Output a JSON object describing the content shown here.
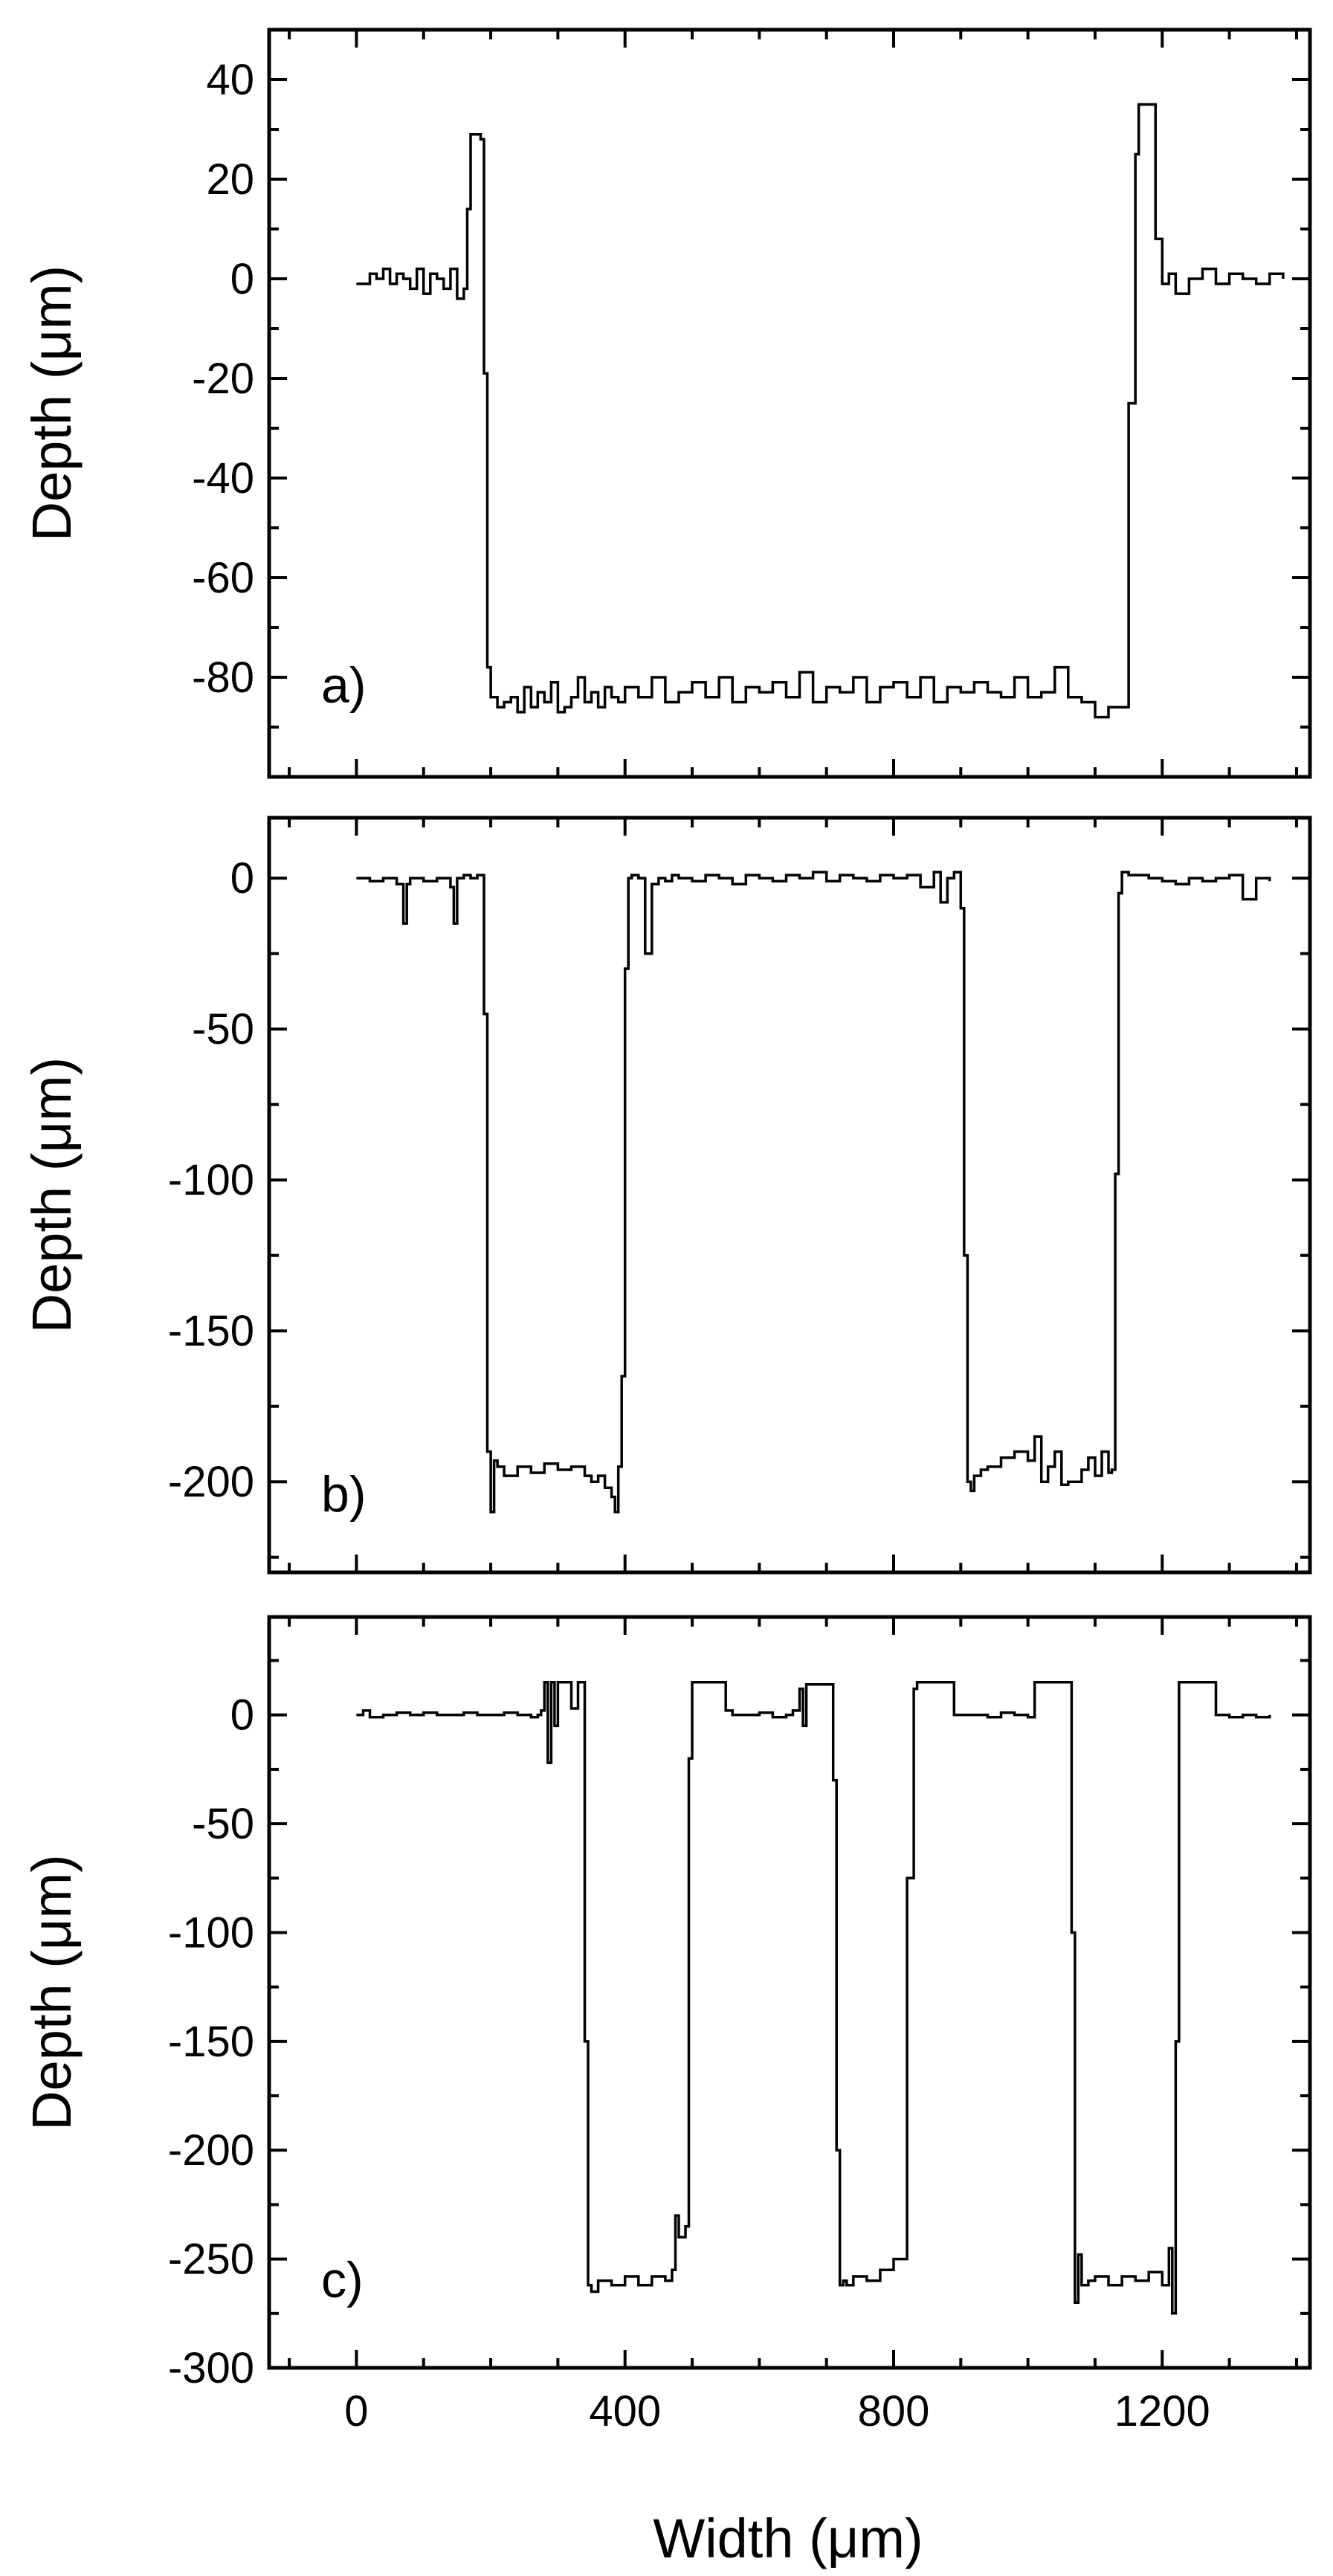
{
  "chart_data": [
    {
      "type": "line",
      "panel_label": "a)",
      "ylabel": "Depth (μm)",
      "xlim": [
        -130,
        1420
      ],
      "ylim": [
        -100,
        50
      ],
      "x_ticks": [
        0,
        400,
        800,
        1200
      ],
      "x_minor_step": 100,
      "y_ticks": [
        40,
        20,
        0,
        -20,
        -40,
        -60,
        -80
      ],
      "y_minor_step": 10,
      "series": [
        {
          "x": [
            0,
            10,
            20,
            30,
            40,
            50,
            60,
            70,
            80,
            90,
            100,
            110,
            120,
            130,
            140,
            150,
            160,
            165,
            170,
            180,
            185,
            190,
            195,
            200,
            210,
            220,
            230,
            240,
            250,
            260,
            270,
            280,
            290,
            300,
            310,
            320,
            330,
            340,
            350,
            360,
            370,
            380,
            390,
            400,
            420,
            440,
            460,
            480,
            500,
            520,
            540,
            560,
            580,
            600,
            620,
            640,
            660,
            680,
            700,
            720,
            740,
            760,
            780,
            800,
            820,
            840,
            860,
            880,
            900,
            920,
            940,
            960,
            980,
            1000,
            1020,
            1040,
            1060,
            1080,
            1100,
            1120,
            1140,
            1150,
            1160,
            1165,
            1170,
            1175,
            1180,
            1190,
            1200,
            1210,
            1220,
            1240,
            1260,
            1280,
            1300,
            1320,
            1340,
            1360,
            1380
          ],
          "y": [
            -1,
            -1,
            1,
            0,
            2,
            -1,
            1,
            0,
            -2,
            2,
            -3,
            1,
            0,
            -2,
            2,
            -4,
            -2,
            14,
            29,
            29,
            28,
            -19,
            -78,
            -84,
            -86,
            -85,
            -84,
            -87,
            -82,
            -86,
            -83,
            -85,
            -81,
            -87,
            -86,
            -84,
            -80,
            -85,
            -83,
            -86,
            -82,
            -84,
            -85,
            -82,
            -84,
            -80,
            -85,
            -83,
            -81,
            -84,
            -80,
            -85,
            -82,
            -83,
            -81,
            -84,
            -79,
            -85,
            -82,
            -83,
            -80,
            -85,
            -82,
            -81,
            -84,
            -80,
            -85,
            -82,
            -83,
            -81,
            -83,
            -84,
            -80,
            -84,
            -83,
            -78,
            -84,
            -85,
            -88,
            -86,
            -86,
            -25,
            25,
            35,
            35,
            35,
            35,
            8,
            -1,
            1,
            -3,
            0,
            2,
            -1,
            1,
            0,
            -1,
            1,
            0
          ]
        }
      ]
    },
    {
      "type": "line",
      "panel_label": "b)",
      "ylabel": "Depth (μm)",
      "xlim": [
        -130,
        1420
      ],
      "ylim": [
        -230,
        20
      ],
      "x_ticks": [
        0,
        400,
        800,
        1200
      ],
      "x_minor_step": 100,
      "y_ticks": [
        0,
        -50,
        -100,
        -150,
        -200
      ],
      "y_minor_step": 25,
      "series": [
        {
          "x": [
            0,
            20,
            40,
            60,
            70,
            75,
            80,
            100,
            120,
            140,
            145,
            150,
            160,
            170,
            180,
            190,
            195,
            200,
            205,
            210,
            220,
            240,
            260,
            280,
            300,
            320,
            340,
            350,
            360,
            370,
            380,
            385,
            390,
            395,
            400,
            405,
            410,
            420,
            430,
            440,
            450,
            460,
            470,
            480,
            500,
            520,
            540,
            560,
            580,
            600,
            620,
            640,
            660,
            680,
            700,
            720,
            740,
            760,
            780,
            800,
            820,
            840,
            860,
            870,
            880,
            890,
            900,
            905,
            910,
            915,
            920,
            930,
            940,
            960,
            980,
            1000,
            1010,
            1020,
            1030,
            1040,
            1050,
            1060,
            1080,
            1090,
            1100,
            1110,
            1120,
            1125,
            1130,
            1135,
            1140,
            1150,
            1160,
            1180,
            1200,
            1220,
            1240,
            1260,
            1280,
            1300,
            1320,
            1340,
            1360
          ],
          "y": [
            0,
            -1,
            0,
            -2,
            -15,
            -2,
            0,
            -1,
            0,
            -3,
            -15,
            0,
            1,
            0,
            1,
            -45,
            -190,
            -210,
            -193,
            -195,
            -198,
            -195,
            -197,
            -194,
            -196,
            -195,
            -198,
            -200,
            -198,
            -202,
            -205,
            -210,
            -195,
            -165,
            -30,
            0,
            1,
            0,
            -25,
            -2,
            0,
            -1,
            1,
            0,
            -1,
            1,
            0,
            -2,
            1,
            0,
            -1,
            1,
            0,
            2,
            -1,
            1,
            0,
            -1,
            1,
            0,
            1,
            -3,
            2,
            -8,
            0,
            2,
            -10,
            -125,
            -200,
            -203,
            -198,
            -196,
            -195,
            -192,
            -190,
            -193,
            -185,
            -200,
            -195,
            -190,
            -201,
            -200,
            -196,
            -192,
            -198,
            -190,
            -197,
            -196,
            -98,
            -5,
            2,
            1,
            1,
            0,
            -1,
            -2,
            0,
            -1,
            0,
            1,
            -7,
            0,
            -1
          ]
        }
      ]
    },
    {
      "type": "line",
      "panel_label": "c)",
      "ylabel": "Depth (μm)",
      "xlim": [
        -130,
        1420
      ],
      "ylim": [
        -300,
        45
      ],
      "x_ticks": [
        0,
        400,
        800,
        1200
      ],
      "x_minor_step": 100,
      "y_ticks": [
        0,
        -50,
        -100,
        -150,
        -200,
        -250,
        -300
      ],
      "y_minor_step": 25,
      "xlabel": "Width (μm)",
      "series": [
        {
          "x": [
            0,
            10,
            20,
            40,
            60,
            80,
            100,
            120,
            140,
            160,
            180,
            200,
            220,
            240,
            260,
            270,
            275,
            280,
            285,
            290,
            295,
            300,
            310,
            320,
            330,
            335,
            340,
            345,
            350,
            360,
            380,
            400,
            420,
            440,
            460,
            470,
            475,
            480,
            490,
            495,
            500,
            520,
            540,
            550,
            560,
            580,
            600,
            620,
            640,
            650,
            660,
            665,
            670,
            680,
            690,
            700,
            710,
            715,
            720,
            725,
            730,
            740,
            760,
            780,
            800,
            820,
            830,
            835,
            840,
            845,
            850,
            870,
            890,
            900,
            920,
            940,
            960,
            980,
            1000,
            1010,
            1020,
            1040,
            1060,
            1065,
            1070,
            1075,
            1080,
            1090,
            1100,
            1120,
            1140,
            1160,
            1180,
            1200,
            1210,
            1215,
            1220,
            1225,
            1230,
            1240,
            1260,
            1280,
            1290,
            1300,
            1320,
            1340,
            1360
          ],
          "y": [
            0,
            2,
            -1,
            0,
            1,
            0,
            1,
            0,
            0,
            1,
            0,
            0,
            1,
            0,
            -1,
            0,
            2,
            15,
            -22,
            15,
            -5,
            15,
            15,
            3,
            15,
            15,
            -150,
            -262,
            -265,
            -260,
            -262,
            -258,
            -262,
            -258,
            -260,
            -255,
            -230,
            -240,
            -235,
            -20,
            15,
            15,
            15,
            2,
            0,
            0,
            1,
            -1,
            0,
            2,
            12,
            -5,
            14,
            14,
            14,
            14,
            -30,
            -200,
            -262,
            -260,
            -262,
            -258,
            -260,
            -255,
            -250,
            -75,
            12,
            15,
            15,
            15,
            15,
            15,
            0,
            0,
            0,
            -1,
            1,
            0,
            -1,
            15,
            15,
            15,
            15,
            -100,
            -270,
            -248,
            -262,
            -260,
            -258,
            -262,
            -258,
            -260,
            -256,
            -262,
            -245,
            -275,
            -150,
            15,
            15,
            15,
            15,
            0,
            0,
            -1,
            0,
            -1,
            0
          ]
        }
      ]
    }
  ]
}
